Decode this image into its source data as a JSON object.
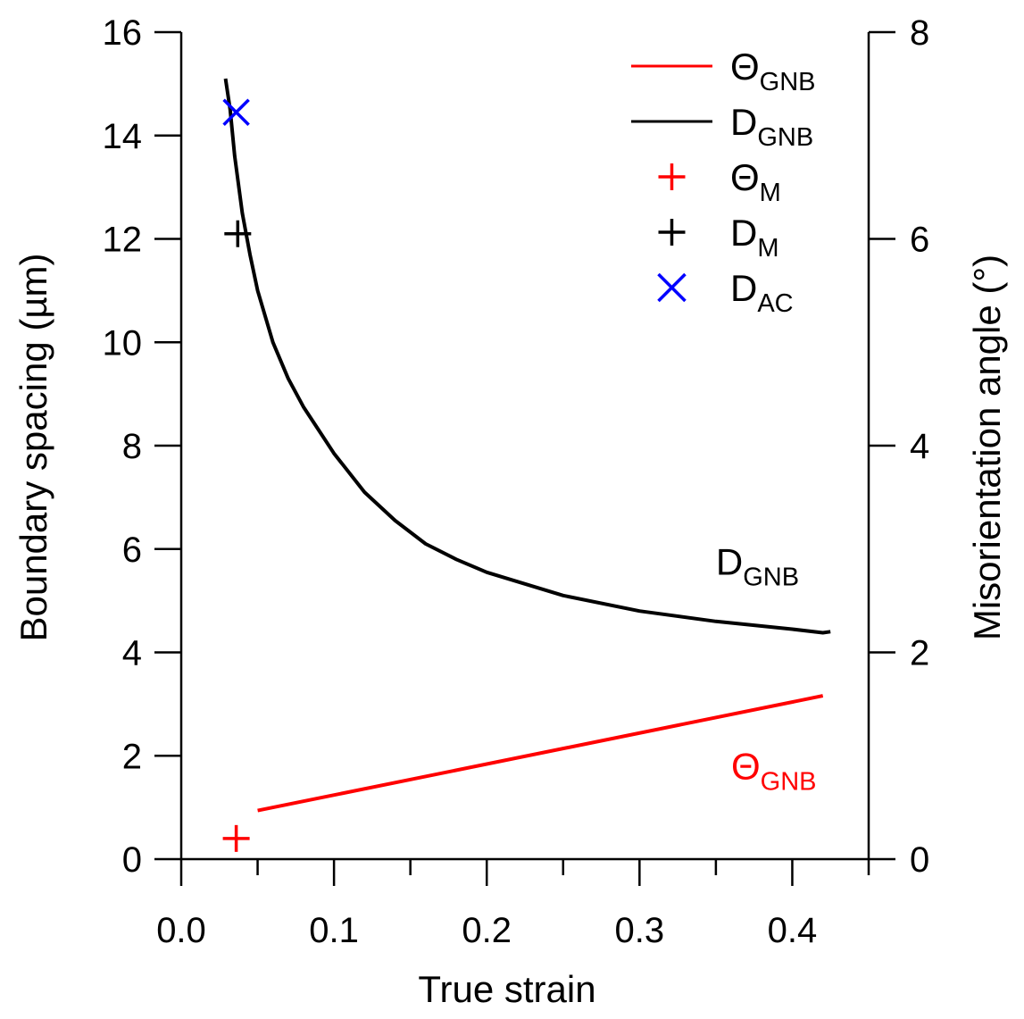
{
  "chart_data": {
    "type": "line",
    "xlabel": "True strain",
    "ylabel_left": "Boundary spacing (µm)",
    "ylabel_right": "Misorientation angle (°)",
    "xlim": [
      0.0,
      0.45
    ],
    "ylim_left": [
      0,
      16
    ],
    "ylim_right": [
      0,
      8
    ],
    "x_ticks": [
      "0.0",
      "0.1",
      "0.2",
      "0.3",
      "0.4"
    ],
    "y_left_ticks": [
      "0",
      "2",
      "4",
      "6",
      "8",
      "10",
      "12",
      "14",
      "16"
    ],
    "y_right_ticks": [
      "0",
      "2",
      "4",
      "6",
      "8"
    ],
    "grid": false,
    "legend_position": "top-right",
    "colors": {
      "red": "#ff0000",
      "black": "#000000",
      "blue": "#0000ff"
    },
    "series": [
      {
        "key": "theta_gnb",
        "name_main": "Θ",
        "name_sub": "GNB",
        "kind": "line",
        "axis": "right",
        "color": "#ff0000",
        "x": [
          0.05,
          0.42
        ],
        "y": [
          0.47,
          1.58
        ]
      },
      {
        "key": "d_gnb",
        "name_main": "D",
        "name_sub": "GNB",
        "kind": "line",
        "axis": "left",
        "color": "#000000",
        "x": [
          0.029,
          0.032,
          0.035,
          0.04,
          0.045,
          0.05,
          0.06,
          0.07,
          0.08,
          0.09,
          0.1,
          0.12,
          0.14,
          0.16,
          0.18,
          0.2,
          0.25,
          0.3,
          0.35,
          0.4,
          0.42,
          0.425
        ],
        "y": [
          15.1,
          14.5,
          13.6,
          12.5,
          11.7,
          11.0,
          10.0,
          9.3,
          8.75,
          8.3,
          7.85,
          7.1,
          6.55,
          6.1,
          5.8,
          5.55,
          5.1,
          4.8,
          4.6,
          4.45,
          4.38,
          4.4
        ]
      },
      {
        "key": "theta_m",
        "name_main": "Θ",
        "name_sub": "M",
        "kind": "marker",
        "marker": "plus",
        "axis": "right",
        "color": "#ff0000",
        "x": [
          0.036
        ],
        "y": [
          0.2
        ]
      },
      {
        "key": "d_m",
        "name_main": "D",
        "name_sub": "M",
        "kind": "marker",
        "marker": "plus",
        "axis": "left",
        "color": "#000000",
        "x": [
          0.037
        ],
        "y": [
          12.1
        ]
      },
      {
        "key": "d_ac",
        "name_main": "D",
        "name_sub": "AC",
        "kind": "marker",
        "marker": "x",
        "axis": "left",
        "color": "#0000ff",
        "x": [
          0.036
        ],
        "y": [
          14.45
        ]
      }
    ],
    "annotations": [
      {
        "key": "ann_d_gnb",
        "main": "D",
        "sub": "GNB",
        "color": "#000000",
        "x": 0.35,
        "y_axis": "left",
        "y": 5.5
      },
      {
        "key": "ann_theta_gnb",
        "main": "Θ",
        "sub": "GNB",
        "color": "#ff0000",
        "x": 0.36,
        "y_axis": "left",
        "y": 1.55
      }
    ]
  }
}
